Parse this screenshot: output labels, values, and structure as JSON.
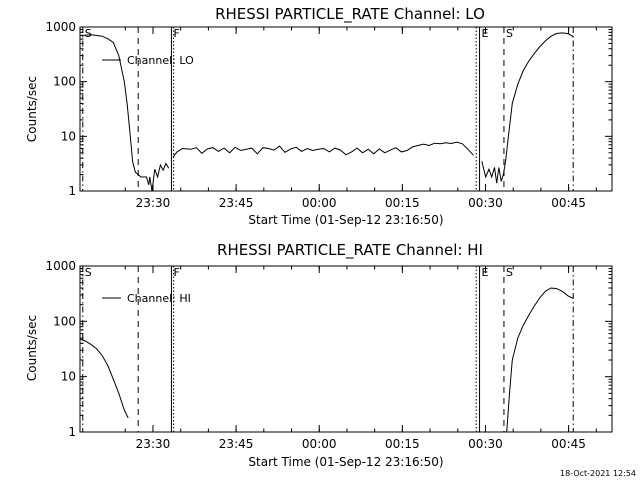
{
  "footer": {
    "timestamp": "18-Oct-2021 12:54"
  },
  "chart_data": [
    {
      "type": "line",
      "title": "RHESSI PARTICLE_RATE Channel: LO",
      "xlabel": "Start Time (01-Sep-12 23:16:50)",
      "ylabel": "Counts/sec",
      "yscale": "log",
      "ylim": [
        1,
        1000
      ],
      "xlim": [
        0,
        96
      ],
      "xunits": "minutes after 23:16:50",
      "ytick_labels": [
        "1",
        "10",
        "100",
        "1000"
      ],
      "xtick_labels": [
        "23:30",
        "23:45",
        "00:00",
        "00:15",
        "00:30",
        "00:45"
      ],
      "xtick_values": [
        13.17,
        28.17,
        43.17,
        58.17,
        73.17,
        88.17
      ],
      "legend": {
        "label": "Channel: LO",
        "position": "top-left"
      },
      "markers": [
        {
          "label": "S",
          "x": 0.5,
          "style": "dashdot"
        },
        {
          "label": "",
          "x": 10.5,
          "style": "dashed"
        },
        {
          "label": "F",
          "x": 16.5,
          "style": "solid"
        },
        {
          "label": "",
          "x": 16.9,
          "style": "dotted"
        },
        {
          "label": "",
          "x": 71.5,
          "style": "dotted"
        },
        {
          "label": "E",
          "x": 72.1,
          "style": "solid"
        },
        {
          "label": "S",
          "x": 76.5,
          "style": "dashed"
        },
        {
          "label": "",
          "x": 89.0,
          "style": "dashdot"
        }
      ],
      "series": [
        {
          "segments": [
            [
              [
                0,
                700
              ],
              [
                2,
                720
              ],
              [
                4,
                680
              ],
              [
                5,
                610
              ],
              [
                6,
                520
              ],
              [
                7,
                300
              ],
              [
                8,
                100
              ],
              [
                8.5,
                40
              ],
              [
                9,
                12
              ],
              [
                9.5,
                3.5
              ],
              [
                10,
                2.2
              ],
              [
                11,
                1.8
              ],
              [
                12,
                1.8
              ],
              [
                12.4,
                1.3
              ],
              [
                12.6,
                1.8
              ],
              [
                13,
                1.0
              ],
              [
                13.5,
                2.5
              ],
              [
                14,
                1.8
              ],
              [
                14.5,
                3.0
              ],
              [
                15,
                2.4
              ],
              [
                15.5,
                3.2
              ],
              [
                16,
                2.6
              ]
            ],
            [
              [
                16.8,
                4.2
              ],
              [
                17.5,
                5.2
              ],
              [
                18.5,
                6.0
              ],
              [
                20,
                5.8
              ],
              [
                21,
                6.2
              ],
              [
                22,
                4.9
              ],
              [
                23,
                5.9
              ],
              [
                24,
                6.2
              ],
              [
                25,
                5.3
              ],
              [
                26,
                6.1
              ],
              [
                27,
                5.0
              ],
              [
                28,
                6.3
              ],
              [
                29,
                5.5
              ],
              [
                30,
                5.8
              ],
              [
                31,
                6.1
              ],
              [
                32,
                4.8
              ],
              [
                33,
                6.2
              ],
              [
                34,
                6.0
              ],
              [
                35,
                5.6
              ],
              [
                36,
                6.6
              ],
              [
                37,
                5.1
              ],
              [
                38,
                5.9
              ],
              [
                39,
                6.3
              ],
              [
                40,
                5.3
              ],
              [
                41,
                6.0
              ],
              [
                42,
                5.5
              ],
              [
                43,
                5.8
              ],
              [
                44,
                6.0
              ],
              [
                45,
                5.2
              ],
              [
                46,
                6.1
              ],
              [
                47,
                5.6
              ],
              [
                48,
                4.6
              ],
              [
                49,
                5.2
              ],
              [
                50,
                6.1
              ],
              [
                51,
                5.0
              ],
              [
                52,
                5.8
              ],
              [
                53,
                4.8
              ],
              [
                54,
                5.9
              ],
              [
                55,
                5.0
              ],
              [
                56,
                5.6
              ],
              [
                57,
                6.2
              ],
              [
                58,
                5.2
              ],
              [
                59,
                5.5
              ],
              [
                60,
                6.4
              ],
              [
                61,
                6.8
              ],
              [
                62,
                7.2
              ],
              [
                63,
                6.8
              ],
              [
                64,
                7.5
              ],
              [
                65,
                7.3
              ],
              [
                66,
                7.6
              ],
              [
                67,
                7.4
              ],
              [
                68,
                7.8
              ],
              [
                69,
                7.3
              ],
              [
                70,
                5.8
              ],
              [
                71,
                4.5
              ]
            ],
            [
              [
                72.5,
                3.5
              ],
              [
                73.2,
                1.8
              ],
              [
                73.8,
                2.5
              ],
              [
                74.3,
                1.8
              ],
              [
                74.8,
                2.7
              ],
              [
                75.2,
                1.4
              ],
              [
                75.6,
                2.7
              ],
              [
                76,
                1.5
              ],
              [
                76.4,
                2.0
              ],
              [
                76.8,
                3.5
              ],
              [
                77.3,
                10
              ],
              [
                78,
                40
              ],
              [
                79,
                90
              ],
              [
                80,
                160
              ],
              [
                81,
                240
              ],
              [
                82,
                330
              ],
              [
                83,
                440
              ],
              [
                84,
                560
              ],
              [
                85,
                680
              ],
              [
                86,
                760
              ],
              [
                87,
                780
              ],
              [
                88,
                760
              ],
              [
                88.8,
                690
              ],
              [
                89,
                650
              ]
            ]
          ]
        }
      ]
    },
    {
      "type": "line",
      "title": "RHESSI PARTICLE_RATE Channel: HI",
      "xlabel": "Start Time (01-Sep-12 23:16:50)",
      "ylabel": "Counts/sec",
      "yscale": "log",
      "ylim": [
        1,
        1000
      ],
      "xlim": [
        0,
        96
      ],
      "xunits": "minutes after 23:16:50",
      "ytick_labels": [
        "1",
        "10",
        "100",
        "1000"
      ],
      "xtick_labels": [
        "23:30",
        "23:45",
        "00:00",
        "00:15",
        "00:30",
        "00:45"
      ],
      "xtick_values": [
        13.17,
        28.17,
        43.17,
        58.17,
        73.17,
        88.17
      ],
      "legend": {
        "label": "Channel: HI",
        "position": "top-left"
      },
      "markers": [
        {
          "label": "S",
          "x": 0.5,
          "style": "dashdot"
        },
        {
          "label": "",
          "x": 10.5,
          "style": "dashed"
        },
        {
          "label": "F",
          "x": 16.5,
          "style": "solid"
        },
        {
          "label": "",
          "x": 16.9,
          "style": "dotted"
        },
        {
          "label": "",
          "x": 71.5,
          "style": "dotted"
        },
        {
          "label": "E",
          "x": 72.1,
          "style": "solid"
        },
        {
          "label": "S",
          "x": 76.5,
          "style": "dashed"
        },
        {
          "label": "",
          "x": 89.0,
          "style": "dashdot"
        }
      ],
      "series": [
        {
          "segments": [
            [
              [
                0,
                48
              ],
              [
                1,
                44
              ],
              [
                2,
                38
              ],
              [
                3,
                32
              ],
              [
                4,
                24
              ],
              [
                5,
                16
              ],
              [
                6,
                9
              ],
              [
                7,
                5
              ],
              [
                7.5,
                3.5
              ],
              [
                8,
                2.5
              ],
              [
                8.7,
                1.8
              ]
            ],
            [
              [
                77,
                1.0
              ],
              [
                77.5,
                5
              ],
              [
                78,
                20
              ],
              [
                79,
                50
              ],
              [
                80,
                85
              ],
              [
                81,
                130
              ],
              [
                82,
                190
              ],
              [
                83,
                270
              ],
              [
                84,
                350
              ],
              [
                85,
                400
              ],
              [
                86,
                390
              ],
              [
                87,
                350
              ],
              [
                88,
                290
              ],
              [
                89,
                260
              ]
            ]
          ]
        }
      ]
    }
  ]
}
